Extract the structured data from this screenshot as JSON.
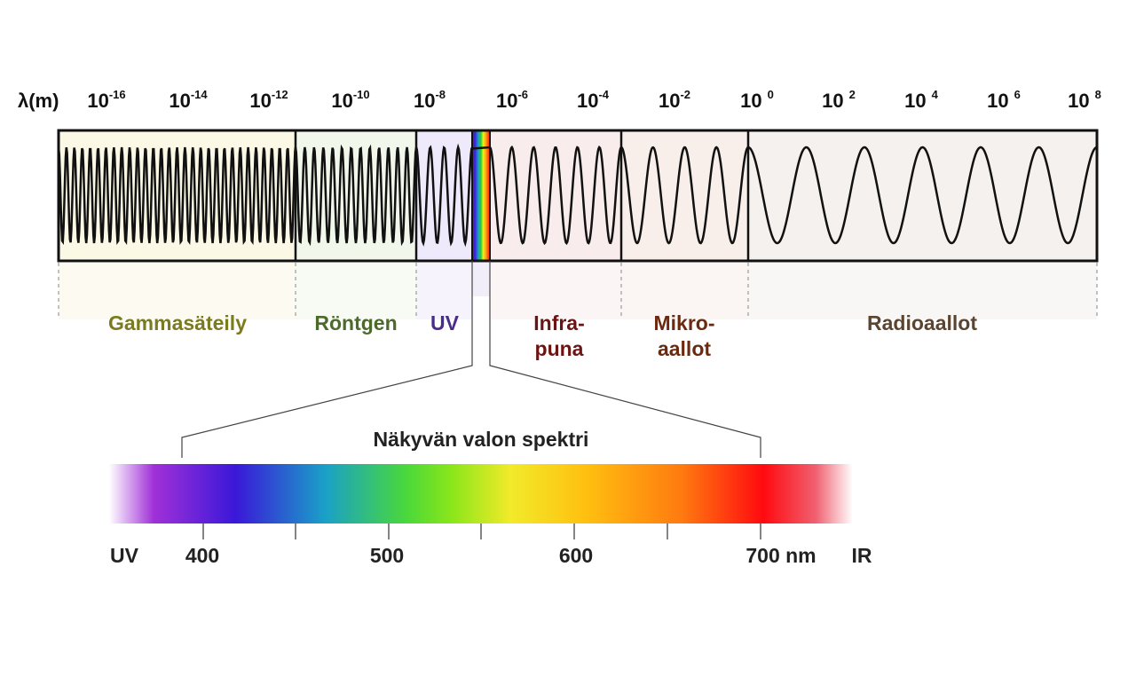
{
  "axis": {
    "label": "λ(m)",
    "ticks": [
      {
        "base": "10",
        "exp": "-16"
      },
      {
        "base": "10",
        "exp": "-14"
      },
      {
        "base": "10",
        "exp": "-12"
      },
      {
        "base": "10",
        "exp": "-10"
      },
      {
        "base": "10",
        "exp": "-8"
      },
      {
        "base": "10",
        "exp": "-6"
      },
      {
        "base": "10",
        "exp": "-4"
      },
      {
        "base": "10",
        "exp": "-2"
      },
      {
        "base": "10 ",
        "exp": "0"
      },
      {
        "base": "10 ",
        "exp": "2"
      },
      {
        "base": "10 ",
        "exp": "4"
      },
      {
        "base": "10 ",
        "exp": "6"
      },
      {
        "base": "10 ",
        "exp": "8"
      }
    ]
  },
  "bands": [
    {
      "lines": [
        "Gammasäteily"
      ],
      "color": "#7a7a1e",
      "fill": "#fbf8e6"
    },
    {
      "lines": [
        "Röntgen"
      ],
      "color": "#4c6a2a",
      "fill": "#f1f7ea"
    },
    {
      "lines": [
        "UV"
      ],
      "color": "#4a2c8a",
      "fill": "#efeafb"
    },
    {
      "lines": [
        "Infra-",
        "puna"
      ],
      "color": "#6b1414",
      "fill": "#f8ecec"
    },
    {
      "lines": [
        "Mikro-",
        "aallot"
      ],
      "color": "#6b2a10",
      "fill": "#f8efeb"
    },
    {
      "lines": [
        "Radioaallot"
      ],
      "color": "#5b4530",
      "fill": "#f4f1ee"
    }
  ],
  "visible": {
    "title": "Näkyvän valon spektri",
    "labels": [
      {
        "text": "UV"
      },
      {
        "text": "400"
      },
      {
        "text": "500"
      },
      {
        "text": "600"
      },
      {
        "text": "700 nm"
      },
      {
        "text": "IR"
      }
    ]
  }
}
